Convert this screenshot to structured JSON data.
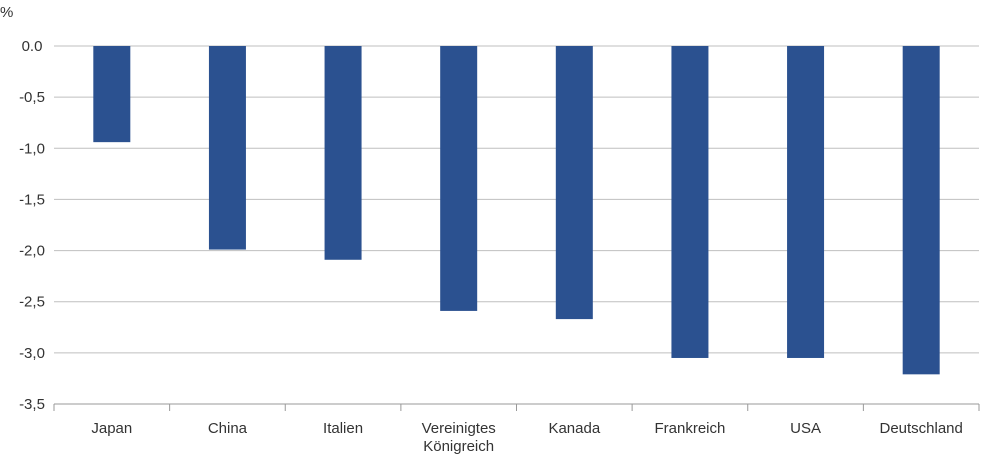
{
  "chart_data": {
    "type": "bar",
    "unit_label": "%",
    "categories": [
      [
        "Japan"
      ],
      [
        "China"
      ],
      [
        "Italien"
      ],
      [
        "Vereinigtes",
        "Königreich"
      ],
      [
        "Kanada"
      ],
      [
        "Frankreich"
      ],
      [
        "USA"
      ],
      [
        "Deutschland"
      ]
    ],
    "values": [
      -0.94,
      -1.99,
      -2.09,
      -2.59,
      -2.67,
      -3.05,
      -3.05,
      -3.21
    ],
    "ylim": [
      -3.5,
      0.0
    ],
    "yticks": [
      0.0,
      -0.5,
      -1.0,
      -1.5,
      -2.0,
      -2.5,
      -3.0,
      -3.5
    ],
    "ytick_labels": [
      "0.0",
      "-0,5",
      "-1,0",
      "-1,5",
      "-2,0",
      "-2,5",
      "-3,0",
      "-3,5"
    ],
    "grid": true,
    "bar_color": "#2b5190",
    "grid_color": "#bfbfbf",
    "axis_color": "#999999"
  }
}
